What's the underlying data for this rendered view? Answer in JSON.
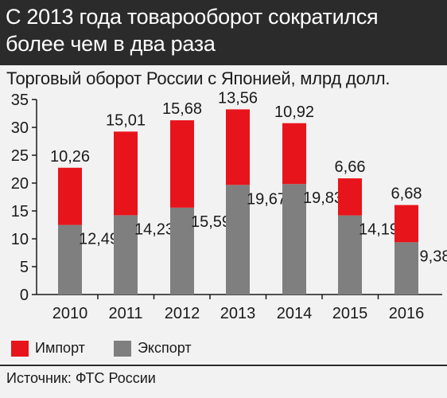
{
  "header": {
    "title": "С 2013 года товарооборот сократился более чем в два раза"
  },
  "chart_data": {
    "type": "bar",
    "stacked": true,
    "title": "Торговый оборот России с Японией, млрд долл.",
    "categories": [
      "2010",
      "2011",
      "2012",
      "2013",
      "2014",
      "2015",
      "2016"
    ],
    "series": [
      {
        "name": "Экспорт",
        "color": "#7f7f7f",
        "values": [
          12.49,
          14.23,
          15.59,
          19.67,
          19.83,
          14.19,
          9.38
        ]
      },
      {
        "name": "Импорт",
        "color": "#e8141b",
        "values": [
          10.26,
          15.01,
          15.68,
          13.56,
          10.92,
          6.66,
          6.68
        ]
      }
    ],
    "export_labels": [
      "12,49",
      "14,23",
      "15,59",
      "19,67",
      "19,83",
      "14,19",
      "9,38"
    ],
    "import_labels": [
      "10,26",
      "15,01",
      "15,68",
      "13,56",
      "10,92",
      "6,66",
      "6,68"
    ],
    "yticks": [
      "0",
      "5",
      "10",
      "15",
      "20",
      "25",
      "30",
      "35"
    ],
    "ylim": [
      0,
      35
    ],
    "grid": false,
    "legend_position": "bottom-left"
  },
  "legend": {
    "import_label": "Импорт",
    "export_label": "Экспорт"
  },
  "colors": {
    "import": "#e8141b",
    "export": "#7f7f7f",
    "header_bg": "#2b2b2b",
    "background": "#f2f2f2"
  },
  "footer": {
    "source": "Источник: ФТС России"
  }
}
